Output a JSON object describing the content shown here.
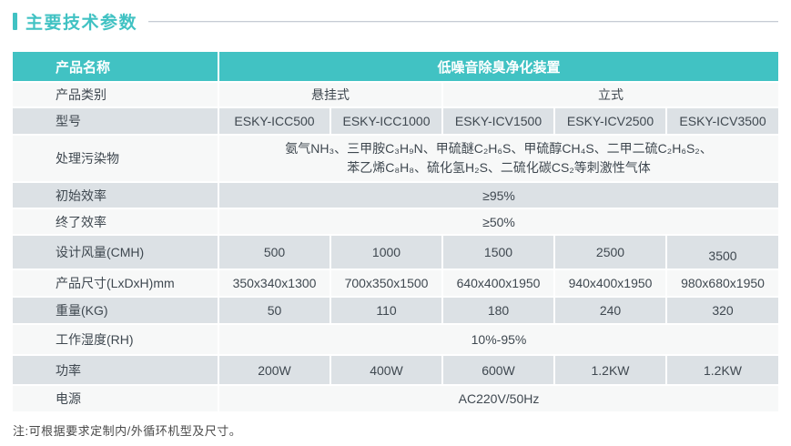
{
  "page": {
    "title": "主要技术参数",
    "note": "注:可根据要求定制内/外循环机型及尺寸。"
  },
  "colors": {
    "accent_teal": "#41C2C3",
    "row_shaded": "#DCE1E5",
    "row_plain": "#F7F8F8",
    "body_text": "#3F4850",
    "header_text": "#FFFFFF"
  },
  "table": {
    "header": {
      "label": "产品名称",
      "product_title": "低噪音除臭净化装置"
    },
    "category": {
      "label": "产品类别",
      "hanging_type": "悬挂式",
      "vertical_type": "立式"
    },
    "model": {
      "label": "型号",
      "values": [
        "ESKY-ICC500",
        "ESKY-ICC1000",
        "ESKY-ICV1500",
        "ESKY-ICV2500",
        "ESKY-ICV3500"
      ]
    },
    "pollutants": {
      "label": "处理污染物",
      "line1": "氨气NH₃、三甲胺C₃H₉N、甲硫醚C₂H₆S、甲硫醇CH₄S、二甲二硫C₂H₆S₂、",
      "line2": "苯乙烯C₈H₈、硫化氢H₂S、二硫化碳CS₂等刺激性气体"
    },
    "initial_efficiency": {
      "label": "初始效率",
      "value": "≥95%"
    },
    "final_efficiency": {
      "label": "终了效率",
      "value": "≥50%"
    },
    "design_airflow": {
      "label": "设计风量(CMH)",
      "values": [
        "500",
        "1000",
        "1500",
        "2500",
        "3500"
      ]
    },
    "dimensions": {
      "label": "产品尺寸(LxDxH)mm",
      "values": [
        "350x340x1300",
        "700x350x1500",
        "640x400x1950",
        "940x400x1950",
        "980x680x1950"
      ]
    },
    "weight": {
      "label": "重量(KG)",
      "values": [
        "50",
        "110",
        "180",
        "240",
        "320"
      ]
    },
    "humidity": {
      "label": "工作湿度(RH)",
      "value": "10%-95%"
    },
    "power": {
      "label": "功率",
      "values": [
        "200W",
        "400W",
        "600W",
        "1.2KW",
        "1.2KW"
      ]
    },
    "power_supply": {
      "label": "电源",
      "value": "AC220V/50Hz"
    }
  }
}
